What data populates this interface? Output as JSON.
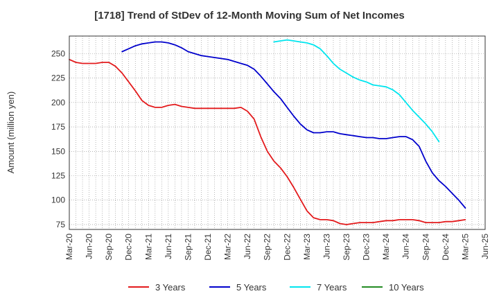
{
  "chart_data": {
    "type": "line",
    "title": "[1718]  Trend of StDev of 12-Month Moving Sum of Net Incomes",
    "ylabel": "Amount (million yen)",
    "xlabel": "",
    "ylim": [
      70,
      268
    ],
    "yticks": [
      75,
      100,
      125,
      150,
      175,
      200,
      225,
      250
    ],
    "xticks": [
      "Mar-20",
      "Jun-20",
      "Sep-20",
      "Dec-20",
      "Mar-21",
      "Jun-21",
      "Sep-21",
      "Dec-21",
      "Mar-22",
      "Jun-22",
      "Sep-22",
      "Dec-22",
      "Mar-23",
      "Jun-23",
      "Sep-23",
      "Dec-23",
      "Mar-24",
      "Jun-24",
      "Sep-24",
      "Dec-24",
      "Mar-25",
      "Jun-25"
    ],
    "grid": true,
    "legend_position": "bottom",
    "series": [
      {
        "name": "3 Years",
        "color": "#e31a1c",
        "values": [
          244,
          241,
          240,
          240,
          240,
          241,
          241,
          237,
          230,
          221,
          212,
          202,
          197,
          195,
          195,
          197,
          198,
          196,
          195,
          194,
          194,
          194,
          194,
          194,
          194,
          194,
          195,
          191,
          183,
          165,
          150,
          140,
          133,
          124,
          113,
          101,
          89,
          82,
          80,
          80,
          79,
          76,
          75,
          76,
          77,
          77,
          77,
          78,
          79,
          79,
          80,
          80,
          80,
          79,
          77,
          77,
          77,
          78,
          78,
          79,
          80
        ]
      },
      {
        "name": "5 Years",
        "color": "#0000cc",
        "values": [
          null,
          null,
          null,
          null,
          null,
          null,
          null,
          null,
          252,
          255,
          258,
          260,
          261,
          262,
          262,
          261,
          259,
          256,
          252,
          250,
          248,
          247,
          246,
          245,
          244,
          242,
          240,
          238,
          234,
          227,
          219,
          211,
          204,
          195,
          186,
          178,
          172,
          169,
          169,
          170,
          170,
          168,
          167,
          166,
          165,
          164,
          164,
          163,
          163,
          164,
          165,
          165,
          162,
          155,
          140,
          128,
          120,
          114,
          107,
          100,
          92
        ]
      },
      {
        "name": "7 Years",
        "color": "#00e5ee",
        "values": [
          null,
          null,
          null,
          null,
          null,
          null,
          null,
          null,
          null,
          null,
          null,
          null,
          null,
          null,
          null,
          null,
          null,
          null,
          null,
          null,
          null,
          null,
          null,
          null,
          null,
          null,
          null,
          null,
          null,
          null,
          null,
          262,
          263,
          264,
          263,
          262,
          261,
          259,
          255,
          248,
          240,
          234,
          230,
          226,
          223,
          221,
          218,
          217,
          216,
          213,
          208,
          200,
          192,
          185,
          178,
          170,
          160
        ]
      },
      {
        "name": "10 Years",
        "color": "#228b22",
        "values": []
      }
    ]
  }
}
